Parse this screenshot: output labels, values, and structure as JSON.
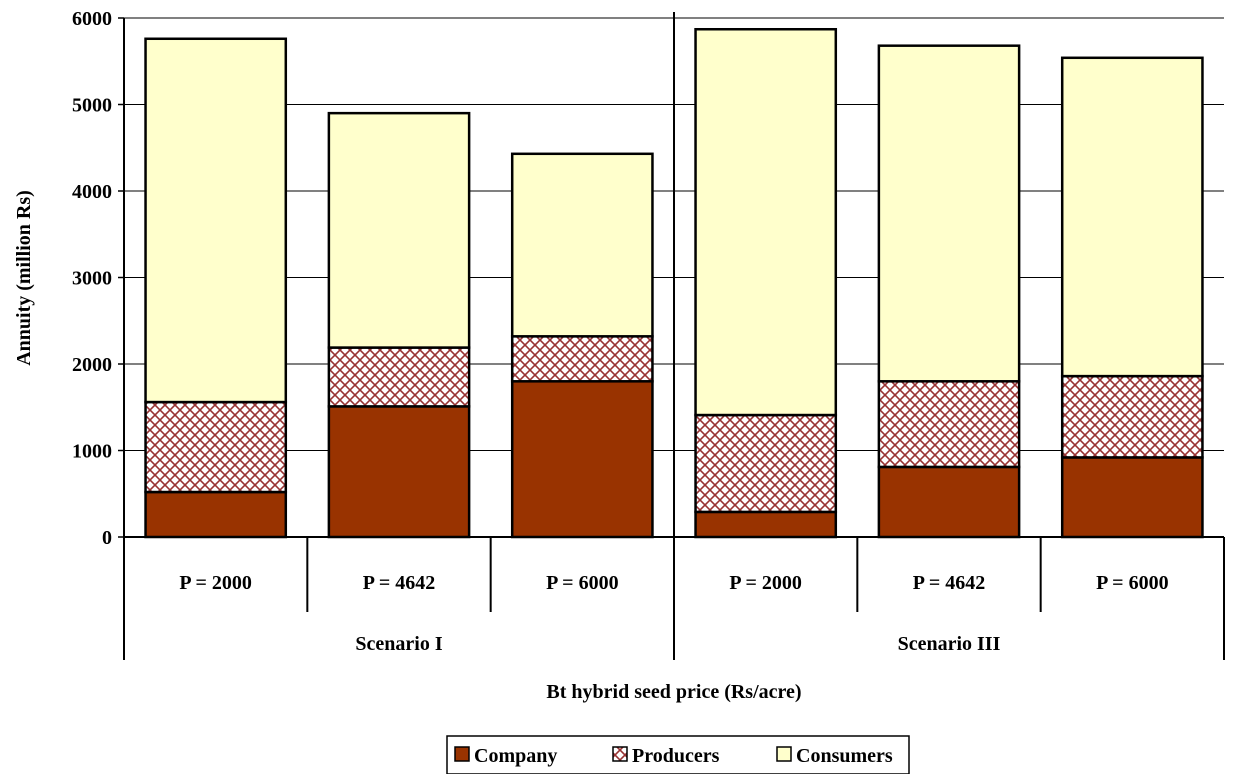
{
  "chart_data": {
    "type": "bar",
    "stacked": true,
    "title": "",
    "xlabel": "Bt hybrid seed price (Rs/acre)",
    "ylabel": "Annuity (million Rs)",
    "ylim": [
      0,
      6000
    ],
    "yticks": [
      0,
      1000,
      2000,
      3000,
      4000,
      5000,
      6000
    ],
    "grid": true,
    "legend_position": "bottom",
    "groups": [
      {
        "label": "Scenario I",
        "categories": [
          "P = 2000",
          "P = 4642",
          "P = 6000"
        ]
      },
      {
        "label": "Scenario III",
        "categories": [
          "P = 2000",
          "P = 4642",
          "P = 6000"
        ]
      }
    ],
    "series": [
      {
        "name": "Company",
        "color": "#993300",
        "pattern": "solid",
        "values": [
          520,
          1510,
          1800,
          290,
          810,
          920
        ]
      },
      {
        "name": "Producers",
        "color": "#993333",
        "pattern": "crosshatch",
        "values": [
          1040,
          680,
          520,
          1120,
          990,
          940
        ]
      },
      {
        "name": "Consumers",
        "color": "#FFFFCC",
        "pattern": "solid",
        "values": [
          4200,
          2710,
          2110,
          4460,
          3880,
          3680
        ]
      }
    ]
  }
}
